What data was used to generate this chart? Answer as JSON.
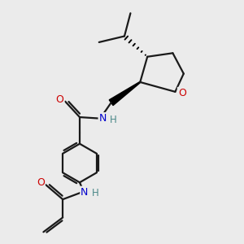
{
  "background_color": "#ebebeb",
  "line_color": "#1a1a1a",
  "o_color": "#cc0000",
  "n_color": "#0000cc",
  "h_color": "#4a8888",
  "line_width": 1.6,
  "font_size_atoms": 8.5,
  "fig_width": 3.0,
  "fig_height": 3.0,
  "dpi": 100,
  "xlim": [
    0,
    10
  ],
  "ylim": [
    0,
    10
  ]
}
